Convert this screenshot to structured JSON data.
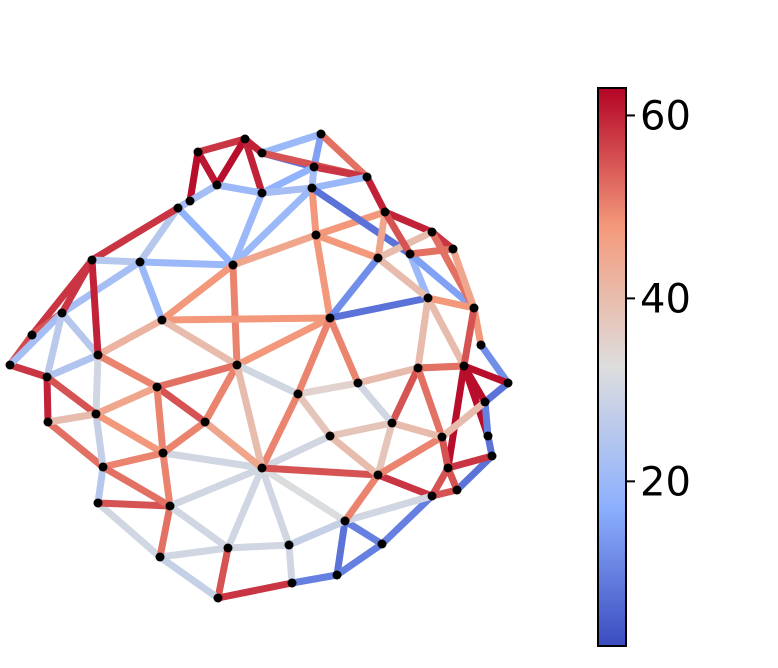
{
  "colorbar": {
    "colormap": "coolwarm",
    "min": 2,
    "max": 63,
    "ticks": [
      {
        "value": 20,
        "label": "20"
      },
      {
        "value": 40,
        "label": "40"
      },
      {
        "value": 60,
        "label": "60"
      }
    ],
    "stops": [
      {
        "offset": 0.0,
        "color": "#3b4cc0"
      },
      {
        "offset": 0.25,
        "color": "#8db0fe"
      },
      {
        "offset": 0.5,
        "color": "#dddddd"
      },
      {
        "offset": 0.75,
        "color": "#f49a7b"
      },
      {
        "offset": 1.0,
        "color": "#b40426"
      }
    ]
  },
  "network": {
    "node_color": "#000000",
    "edge_values": [
      58,
      60,
      61,
      62,
      60,
      20,
      15,
      8,
      55,
      52,
      18,
      62,
      58,
      20,
      22,
      58,
      60,
      20,
      22,
      25,
      58,
      18,
      20,
      20,
      22,
      48,
      48,
      8,
      60,
      45,
      20,
      25,
      45,
      48,
      40,
      58,
      20,
      15,
      22,
      48,
      50,
      48,
      12,
      8,
      52,
      40,
      48,
      45,
      48,
      40,
      48,
      50,
      40,
      40,
      42,
      35,
      30,
      38,
      50,
      38,
      55,
      12,
      52,
      58,
      42,
      40,
      55,
      56,
      58,
      60,
      62,
      62,
      55,
      22,
      52,
      25,
      58,
      26,
      24,
      30,
      50,
      52,
      25,
      28,
      25,
      55,
      50,
      30,
      30,
      30,
      30,
      32,
      8,
      10,
      8,
      8,
      30,
      30,
      55,
      58,
      52
    ]
  }
}
